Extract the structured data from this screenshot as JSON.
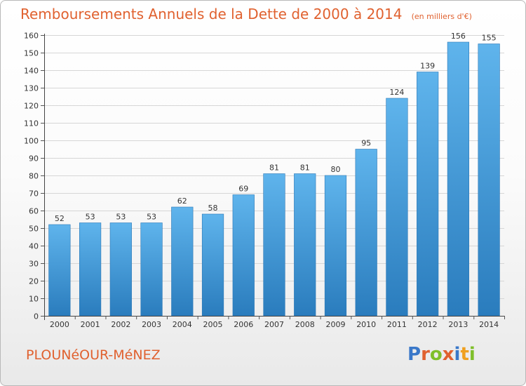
{
  "title": {
    "main": "Remboursements Annuels de la Dette de 2000 à 2014",
    "unit": "(en milliers d'€)"
  },
  "commune": "PLOUNéOUR-MéNEZ",
  "logo": {
    "text": "Proxiti",
    "letter_colors": [
      "#3a78c9",
      "#e0612f",
      "#7fbf2a",
      "#e0612f",
      "#3a78c9",
      "#f0a020",
      "#7fbf2a"
    ]
  },
  "colors": {
    "accent": "#e0612f",
    "bar_top": "#5fb4ec",
    "bar_bottom": "#2a7cbd",
    "grid": "#d6d6d6"
  },
  "chart_data": {
    "type": "bar",
    "categories": [
      "2000",
      "2001",
      "2002",
      "2003",
      "2004",
      "2005",
      "2006",
      "2007",
      "2008",
      "2009",
      "2010",
      "2011",
      "2012",
      "2013",
      "2014"
    ],
    "values": [
      52,
      53,
      53,
      53,
      62,
      58,
      69,
      81,
      81,
      80,
      95,
      124,
      139,
      156,
      155
    ],
    "ylim": [
      0,
      160
    ],
    "yticks": [
      0,
      10,
      20,
      30,
      40,
      50,
      60,
      70,
      80,
      90,
      100,
      110,
      120,
      130,
      140,
      150,
      160
    ],
    "grid": true,
    "legend": false
  }
}
